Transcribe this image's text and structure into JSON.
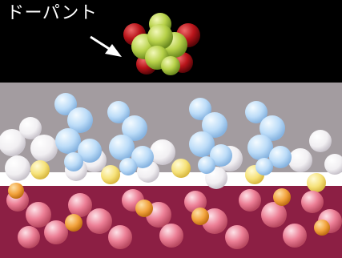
{
  "dopant_label": "ドーパント",
  "colors": {
    "background_top": "#000000",
    "band_gray": "#a39ca0",
    "band_maroon": "#8c1f44",
    "dopant_green": "#b8d24a",
    "dopant_red": "#b8141a",
    "molecule_blue": "#bcdcf8",
    "chain_white": "#f4f2f4",
    "chain_yellow": "#f6e27a",
    "ring_pink": "#ec7f96",
    "ring_orange": "#f2a23c"
  },
  "icons": [
    "arrow-icon"
  ]
}
